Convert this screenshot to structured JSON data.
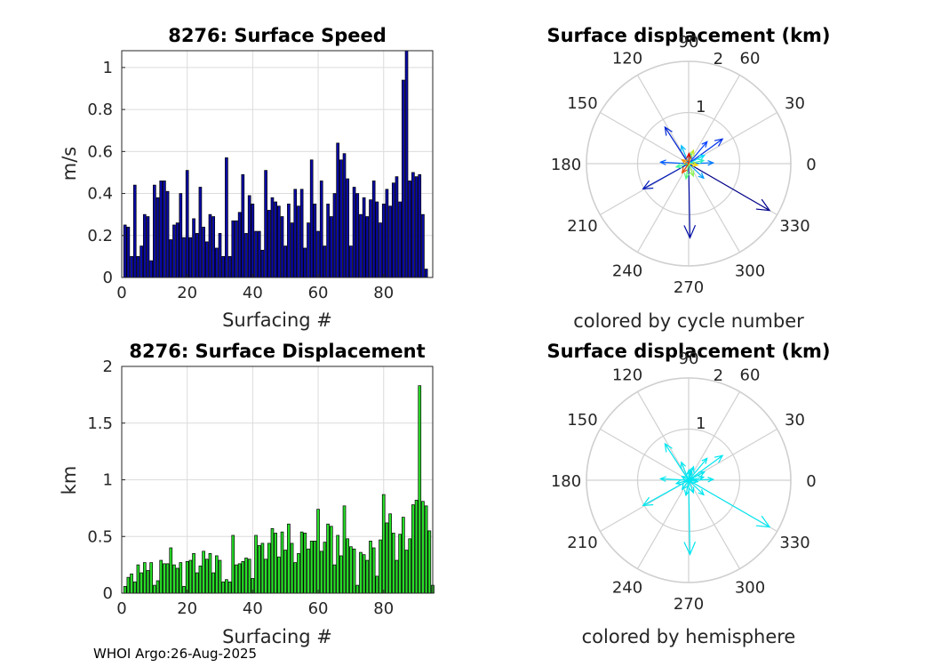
{
  "footer": {
    "source": "WHOI Argo",
    "date": "26-Aug-2025"
  },
  "chart_data": [
    {
      "type": "bar",
      "title": "8276: Surface Speed",
      "xlabel": "Surfacing #",
      "ylabel": "m/s",
      "xlim": [
        0,
        95
      ],
      "ylim": [
        0,
        1.08
      ],
      "xticks": [
        0,
        20,
        40,
        60,
        80
      ],
      "yticks": [
        0,
        0.2,
        0.4,
        0.6,
        0.8,
        1
      ],
      "grid": true,
      "color": "#0a0aa8",
      "values": [
        0.25,
        0.24,
        0.1,
        0.44,
        0.1,
        0.15,
        0.3,
        0.29,
        0.08,
        0.44,
        0.38,
        0.46,
        0.46,
        0.41,
        0.18,
        0.25,
        0.26,
        0.4,
        0.19,
        0.51,
        0.19,
        0.28,
        0.21,
        0.43,
        0.24,
        0.17,
        0.3,
        0.29,
        0.14,
        0.21,
        0.1,
        0.57,
        0.1,
        0.27,
        0.27,
        0.31,
        0.49,
        0.21,
        0.39,
        0.35,
        0.22,
        0.22,
        0.13,
        0.51,
        0.32,
        0.38,
        0.36,
        0.34,
        0.29,
        0.15,
        0.35,
        0.26,
        0.42,
        0.34,
        0.42,
        0.14,
        0.26,
        0.56,
        0.35,
        0.22,
        0.46,
        0.15,
        0.35,
        0.29,
        0.4,
        0.64,
        0.56,
        0.59,
        0.47,
        0.15,
        0.43,
        0.4,
        0.3,
        0.38,
        0.29,
        0.37,
        0.46,
        0.36,
        0.26,
        0.35,
        0.42,
        0.34,
        0.45,
        0.48,
        0.36,
        0.94,
        1.08,
        0.46,
        0.5,
        0.48,
        0.49,
        0.3,
        0.04
      ]
    },
    {
      "type": "bar",
      "title": "8276: Surface Displacement",
      "xlabel": "Surfacing #",
      "ylabel": "km",
      "xlim": [
        0,
        95
      ],
      "ylim": [
        0,
        2
      ],
      "xticks": [
        0,
        20,
        40,
        60,
        80
      ],
      "yticks": [
        0,
        0.5,
        1,
        1.5,
        2
      ],
      "grid": true,
      "color": "#28e028",
      "values": [
        0.06,
        0.14,
        0.17,
        0.1,
        0.25,
        0.18,
        0.27,
        0.2,
        0.27,
        0.07,
        0.11,
        0.29,
        0.26,
        0.26,
        0.4,
        0.25,
        0.22,
        0.27,
        0.06,
        0.28,
        0.29,
        0.35,
        0.18,
        0.24,
        0.37,
        0.3,
        0.35,
        0.18,
        0.33,
        0.29,
        0.1,
        0.12,
        0.1,
        0.51,
        0.25,
        0.26,
        0.28,
        0.31,
        0.3,
        0.13,
        0.51,
        0.42,
        0.44,
        0.3,
        0.44,
        0.57,
        0.53,
        0.32,
        0.54,
        0.38,
        0.61,
        0.44,
        0.27,
        0.35,
        0.54,
        0.53,
        0.39,
        0.46,
        0.46,
        0.74,
        0.37,
        0.45,
        0.61,
        0.59,
        0.25,
        0.51,
        0.33,
        0.77,
        0.48,
        0.41,
        0.39,
        0.07,
        0.36,
        0.34,
        0.29,
        0.46,
        0.4,
        0.15,
        0.47,
        0.87,
        0.62,
        0.7,
        0.53,
        0.29,
        0.52,
        0.67,
        0.38,
        0.48,
        0.78,
        0.82,
        1.83,
        0.81,
        0.77,
        0.55,
        0.07
      ]
    },
    {
      "type": "polar_quiver",
      "title": "Surface displacement (km)",
      "caption": "colored by cycle number",
      "rlim": [
        0,
        2
      ],
      "rtick_labels": [
        "1",
        "2"
      ],
      "angle_labels": [
        "0",
        "30",
        "60",
        "90",
        "120",
        "150",
        "180",
        "210",
        "240",
        "270",
        "300",
        "330"
      ],
      "coloring": "cycle",
      "vectors": [
        {
          "theta": 330,
          "r": 1.83
        },
        {
          "theta": 271,
          "r": 1.45
        },
        {
          "theta": 209,
          "r": 1.02
        },
        {
          "theta": 123,
          "r": 0.85
        },
        {
          "theta": 36,
          "r": 0.82
        },
        {
          "theta": 50,
          "r": 0.56
        },
        {
          "theta": 177,
          "r": 0.55
        },
        {
          "theta": 2,
          "r": 0.48
        },
        {
          "theta": 316,
          "r": 0.41
        },
        {
          "theta": 112,
          "r": 0.38
        },
        {
          "theta": 28,
          "r": 0.35
        },
        {
          "theta": 79,
          "r": 0.22
        },
        {
          "theta": 12,
          "r": 0.3
        },
        {
          "theta": 195,
          "r": 0.25
        },
        {
          "theta": 260,
          "r": 0.3
        },
        {
          "theta": 291,
          "r": 0.26
        },
        {
          "theta": 70,
          "r": 0.28
        },
        {
          "theta": 351,
          "r": 0.18
        },
        {
          "theta": 150,
          "r": 0.15
        },
        {
          "theta": 235,
          "r": 0.22
        },
        {
          "theta": 88,
          "r": 0.2
        }
      ]
    },
    {
      "type": "polar_quiver",
      "title": "Surface displacement (km)",
      "caption": "colored by hemisphere",
      "rlim": [
        0,
        2
      ],
      "rtick_labels": [
        "1",
        "2"
      ],
      "angle_labels": [
        "0",
        "30",
        "60",
        "90",
        "120",
        "150",
        "180",
        "210",
        "240",
        "270",
        "300",
        "330"
      ],
      "coloring": "hemisphere",
      "color": "#00e6f0",
      "vectors": [
        {
          "theta": 330,
          "r": 1.83
        },
        {
          "theta": 271,
          "r": 1.45
        },
        {
          "theta": 209,
          "r": 1.02
        },
        {
          "theta": 123,
          "r": 0.85
        },
        {
          "theta": 36,
          "r": 0.82
        },
        {
          "theta": 50,
          "r": 0.56
        },
        {
          "theta": 177,
          "r": 0.55
        },
        {
          "theta": 2,
          "r": 0.48
        },
        {
          "theta": 316,
          "r": 0.41
        },
        {
          "theta": 112,
          "r": 0.38
        },
        {
          "theta": 28,
          "r": 0.35
        },
        {
          "theta": 79,
          "r": 0.22
        },
        {
          "theta": 12,
          "r": 0.3
        },
        {
          "theta": 195,
          "r": 0.25
        },
        {
          "theta": 260,
          "r": 0.3
        },
        {
          "theta": 291,
          "r": 0.26
        },
        {
          "theta": 70,
          "r": 0.28
        },
        {
          "theta": 351,
          "r": 0.18
        },
        {
          "theta": 150,
          "r": 0.15
        },
        {
          "theta": 235,
          "r": 0.22
        },
        {
          "theta": 88,
          "r": 0.2
        }
      ]
    }
  ]
}
